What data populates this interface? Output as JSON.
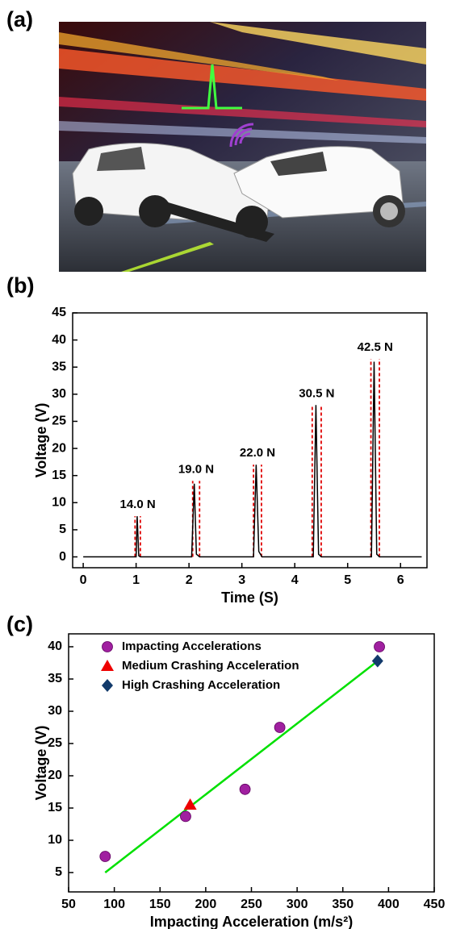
{
  "panel_a": {
    "label": "(a)"
  },
  "chart_data": [
    {
      "type": "line",
      "panel_label": "(b)",
      "x_label": "Time (S)",
      "y_label": "Voltage (V)",
      "x": [
        0,
        0.95,
        1.0,
        1.02,
        1.05,
        1.08,
        2.05,
        2.1,
        2.14,
        2.2,
        3.22,
        3.27,
        3.32,
        3.38,
        4.35,
        4.4,
        4.45,
        4.5,
        5.45,
        5.5,
        5.55,
        5.6,
        6.4
      ],
      "series": [
        {
          "color": "#000000",
          "values": [
            0,
            0,
            0,
            7.5,
            0.2,
            0,
            0,
            13.5,
            0.5,
            0,
            0,
            17,
            1,
            0,
            0,
            28,
            0.5,
            0,
            0,
            36,
            0.5,
            0,
            0
          ]
        }
      ],
      "annotation_color": "#e00000",
      "annotations": [
        {
          "text": "14.0 N",
          "x": [
            0.98,
            1.08
          ],
          "y": 7.5
        },
        {
          "text": "19.0 N",
          "x": [
            2.07,
            2.2
          ],
          "y": 14
        },
        {
          "text": "22.0 N",
          "x": [
            3.22,
            3.37
          ],
          "y": 17
        },
        {
          "text": "30.5 N",
          "x": [
            4.33,
            4.5
          ],
          "y": 28
        },
        {
          "text": "42.5 N",
          "x": [
            5.44,
            5.6
          ],
          "y": 36.5
        }
      ],
      "xlim": [
        -0.2,
        6.5
      ],
      "xticks": [
        0,
        1,
        2,
        3,
        4,
        5,
        6
      ],
      "ylim": [
        -2,
        45
      ],
      "yticks": [
        0,
        5,
        10,
        15,
        20,
        25,
        30,
        35,
        40,
        45
      ]
    },
    {
      "type": "scatter",
      "panel_label": "(c)",
      "x_label": "Impacting Acceleration (m/s²)",
      "y_label": "Voltage (V)",
      "series": [
        {
          "name": "Impacting Accelerations",
          "color": "#a020a0",
          "marker": "circle",
          "x": [
            90,
            178,
            243,
            281,
            390
          ],
          "values": [
            7.5,
            13.7,
            17.9,
            27.5,
            40
          ]
        },
        {
          "name": "Medium Crashing  Acceleration",
          "color": "#ee0000",
          "marker": "triangle",
          "x": [
            183
          ],
          "values": [
            15.5
          ]
        },
        {
          "name": "High Crashing  Acceleration",
          "color": "#123a6b",
          "marker": "diamond",
          "x": [
            388
          ],
          "values": [
            37.8
          ]
        }
      ],
      "fit_line": {
        "color": "#00e000",
        "x": [
          90,
          390
        ],
        "values": [
          5,
          38
        ]
      },
      "legend": "top-left",
      "xlim": [
        50,
        450
      ],
      "xticks": [
        50,
        100,
        150,
        200,
        250,
        300,
        350,
        400,
        450
      ],
      "ylim": [
        2,
        42
      ],
      "yticks": [
        5,
        10,
        15,
        20,
        25,
        30,
        35,
        40
      ]
    }
  ]
}
